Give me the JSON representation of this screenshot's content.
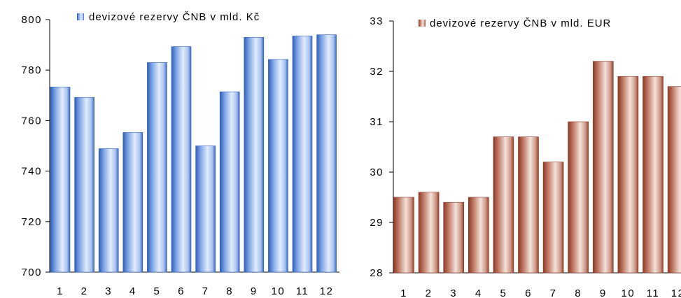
{
  "chart_data": [
    {
      "type": "bar",
      "title": "",
      "xlabel": "",
      "ylabel": "",
      "categories": [
        "1",
        "2",
        "3",
        "4",
        "5",
        "6",
        "7",
        "8",
        "9",
        "10",
        "11",
        "12"
      ],
      "series": [
        {
          "name": "devizové rezervy ČNB v mld. Kč",
          "values": [
            773.3,
            769.2,
            748.9,
            755.3,
            783.0,
            789.3,
            750.0,
            771.4,
            793.0,
            784.2,
            793.5,
            794.0
          ]
        }
      ],
      "ylim": [
        700,
        800
      ],
      "yticks": [
        700,
        720,
        740,
        760,
        780,
        800
      ],
      "legend_position": "top",
      "colors": {
        "bar_edge": "#2f5fb8",
        "bar_light": "#dce8fb",
        "bar_mid": "#8cb0ea"
      },
      "grid": false
    },
    {
      "type": "bar",
      "title": "",
      "xlabel": "",
      "ylabel": "",
      "categories": [
        "1",
        "2",
        "3",
        "4",
        "5",
        "6",
        "7",
        "8",
        "9",
        "10",
        "11",
        "12"
      ],
      "series": [
        {
          "name": "devizové rezervy ČNB v mld. EUR",
          "values": [
            29.5,
            29.6,
            29.4,
            29.5,
            30.7,
            30.7,
            30.2,
            31.0,
            32.2,
            31.9,
            31.9,
            31.7
          ]
        }
      ],
      "ylim": [
        28,
        33
      ],
      "yticks": [
        28,
        29,
        30,
        31,
        32,
        33
      ],
      "legend_position": "top",
      "colors": {
        "bar_edge": "#8c3a26",
        "bar_light": "#f3e0d8",
        "bar_mid": "#c98a76"
      },
      "grid": false
    }
  ]
}
